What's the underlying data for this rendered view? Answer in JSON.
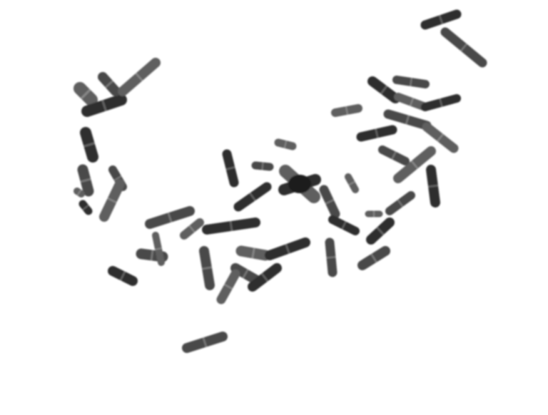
{
  "image": {
    "kind": "metaphase chromosome spread",
    "colors": {
      "background": "#ffffff",
      "chromosome_dark": "#2e2e2e",
      "chromosome_mid": "#4a4a4a",
      "chromosome_light": "#5e5e5e"
    },
    "chromosome_count_visible": 46
  }
}
